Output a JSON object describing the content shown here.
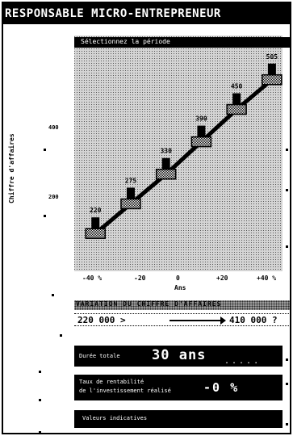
{
  "banner": {
    "text": "RESPONSABLE MICRO-ENTREPRENEUR"
  },
  "chart": {
    "title": "Sélectionnez la période",
    "ylabel": "Chiffre d'affaires",
    "yticks": [
      "400",
      "200"
    ],
    "xticks": [
      "-40 %",
      "-20",
      "0",
      "+20",
      "+40 %"
    ],
    "xlabel": "Ans",
    "point_labels": [
      "220",
      "275",
      "330",
      "390",
      "450",
      "505"
    ]
  },
  "chart_data": {
    "type": "line",
    "x": [
      1,
      2,
      3,
      4,
      5,
      6
    ],
    "values": [
      220,
      275,
      330,
      390,
      450,
      505
    ],
    "ylim": [
      150,
      560
    ],
    "grid": false,
    "legend": "none"
  },
  "range": {
    "title": "VARIATION DU CHIFFRE D'AFFAIRES",
    "from": "220 000 >",
    "to": "410 000 ?"
  },
  "duration": {
    "label": "Durée totale",
    "value": "30 ans",
    "dots": "....."
  },
  "rate": {
    "label_line1": "Taux de rentabilité",
    "label_line2": "de l'investissement réalisé",
    "value": "-0 %"
  },
  "footer": {
    "text": "Valeurs indicatives"
  },
  "colors": {
    "ink": "#000000",
    "paper": "#ffffff",
    "dither": "#d2d2d2"
  }
}
